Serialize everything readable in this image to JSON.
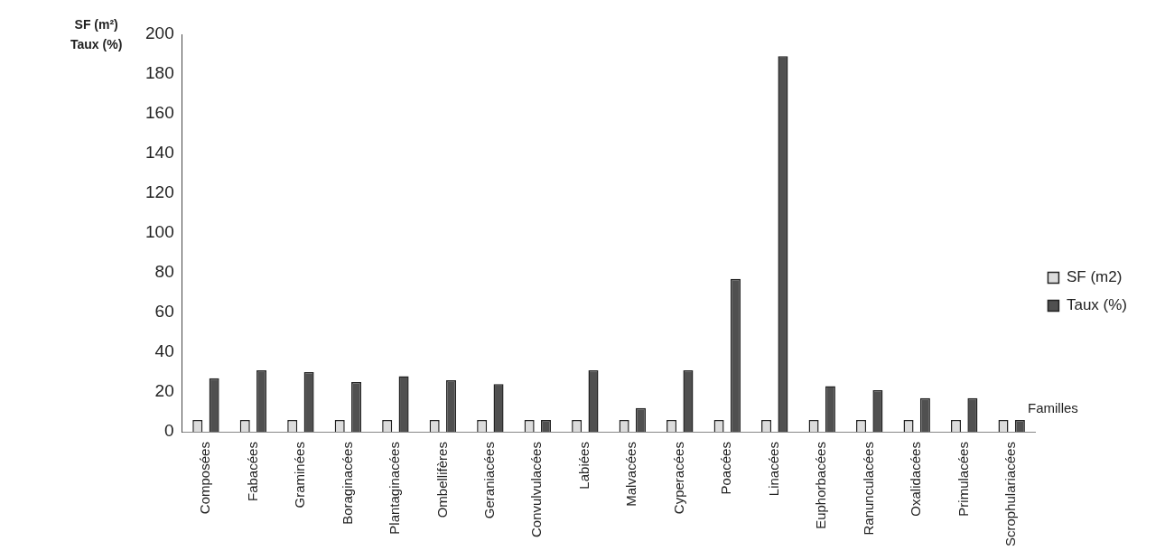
{
  "chart_data": {
    "type": "bar",
    "ylabel": "SF (m²)\nTaux (%)",
    "xlabel": "Familles",
    "categories": [
      "Composées",
      "Fabacées",
      "Graminées",
      "Boraginacées",
      "Plantaginacées",
      "Ombellifères",
      "Geraniacées",
      "Convulvulacées",
      "Labiées",
      "Malvacées",
      "Cyperacées",
      "Poacées",
      "Linacées",
      "Euphorbacées",
      "Ranunculacées",
      "Oxalidacées",
      "Primulacées",
      "Scrophulariacées"
    ],
    "series": [
      {
        "name": "SF (m2)",
        "color": "#dcdcdc",
        "values": [
          6,
          6,
          6,
          6,
          6,
          6,
          6,
          6,
          6,
          6,
          6,
          6,
          6,
          6,
          6,
          6,
          6,
          6
        ]
      },
      {
        "name": "Taux (%)",
        "color": "#505050",
        "values": [
          27,
          31,
          30,
          25,
          28,
          26,
          24,
          6,
          31,
          12,
          31,
          77,
          189,
          23,
          21,
          17,
          17,
          6
        ]
      }
    ],
    "ylim": [
      0,
      200
    ],
    "yticks": [
      0,
      20,
      40,
      60,
      80,
      100,
      120,
      140,
      160,
      180,
      200
    ],
    "grid": false,
    "legend": "right"
  }
}
